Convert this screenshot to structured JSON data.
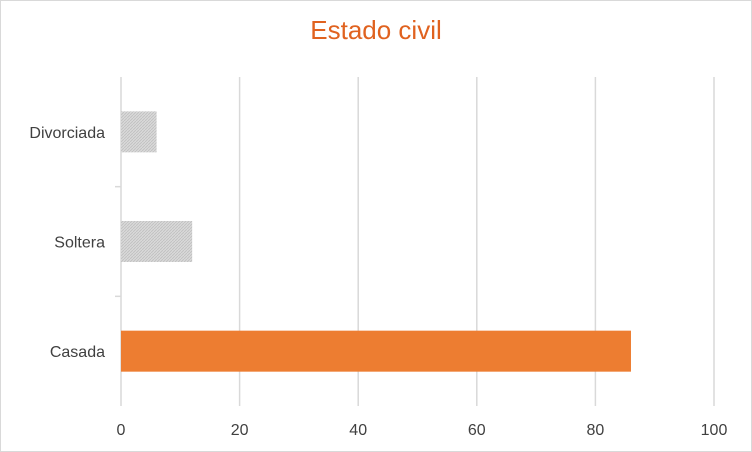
{
  "chart_data": {
    "type": "bar",
    "orientation": "horizontal",
    "title": "Estado civil",
    "categories": [
      "Casada",
      "Soltera",
      "Divorciada"
    ],
    "values": [
      86,
      12,
      6
    ],
    "xlim": [
      0,
      100
    ],
    "xticks": [
      0,
      20,
      40,
      60,
      80,
      100
    ],
    "grid": "vertical",
    "highlight_category": "Casada",
    "colors": {
      "highlight": "#ed7d31",
      "default": "#d9d9d9",
      "grid": "#d9d9d9",
      "title": "#e0621f"
    }
  }
}
